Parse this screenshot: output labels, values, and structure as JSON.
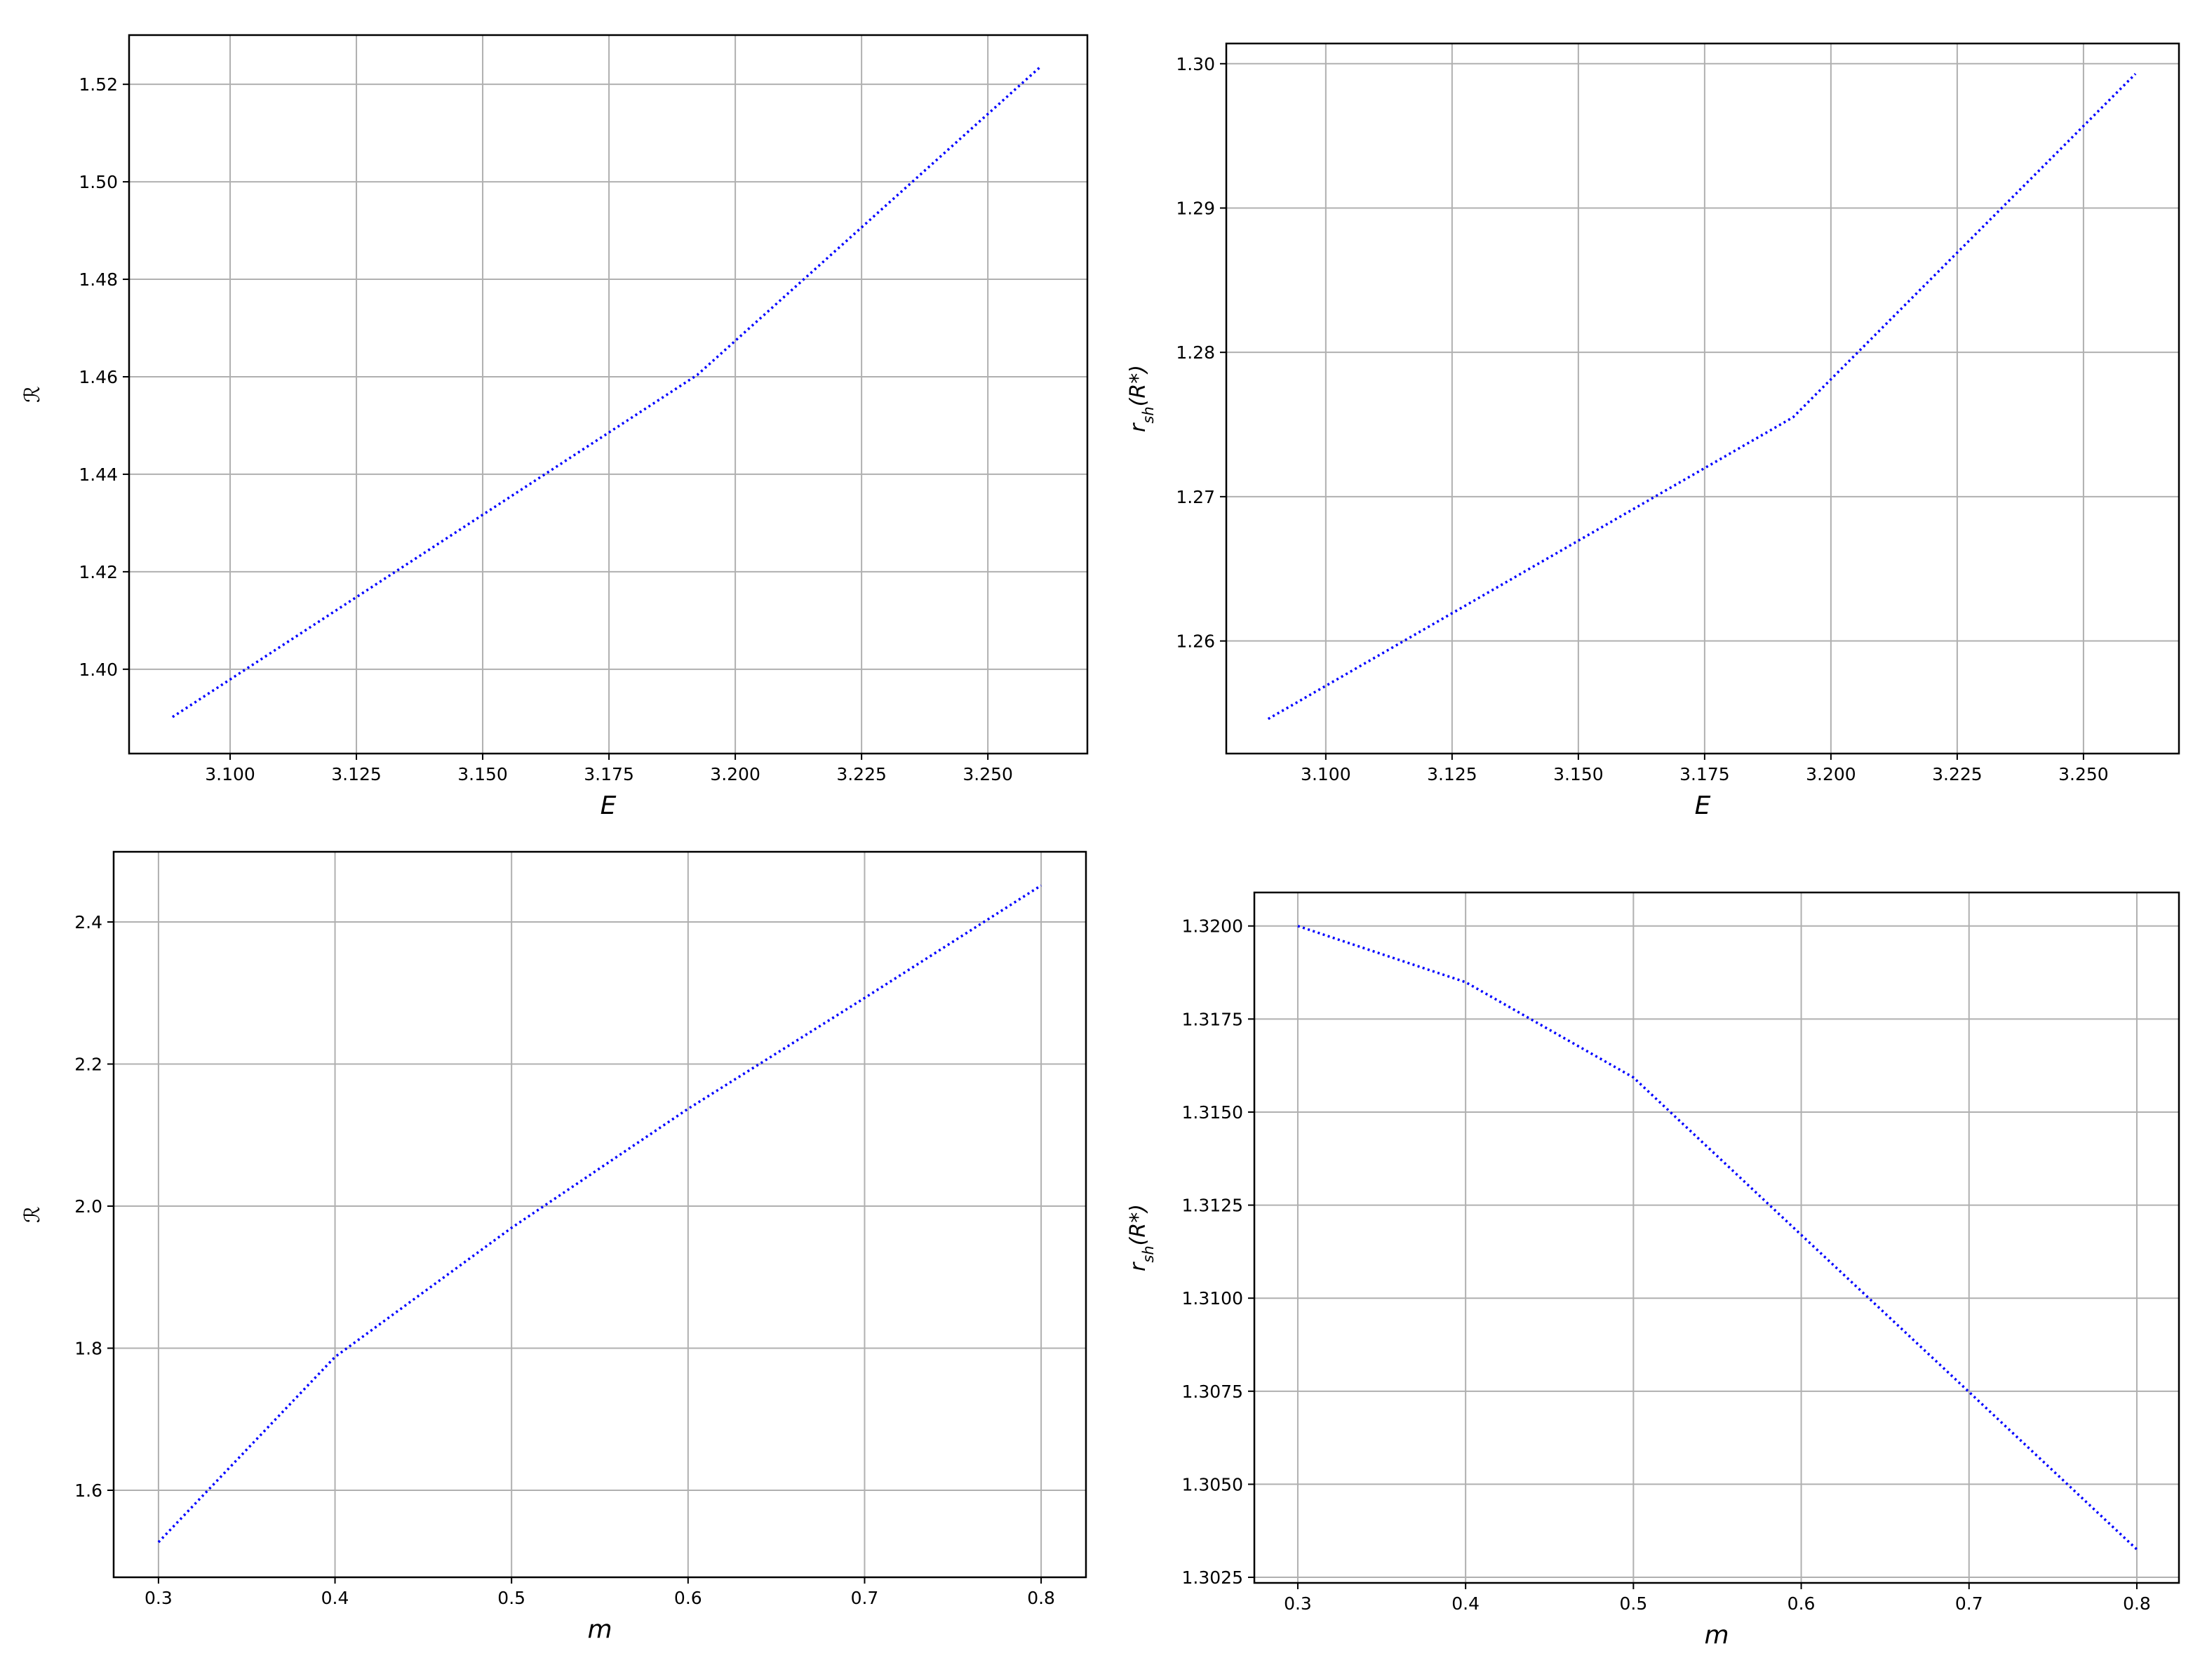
{
  "chart_data": [
    {
      "type": "line",
      "xlabel": "E",
      "ylabel": {
        "base": "ℛ"
      },
      "x": [
        3.0886,
        3.1925,
        3.2603
      ],
      "series": [
        {
          "color": "#0000ff",
          "values": [
            1.3902,
            1.4604,
            1.5235
          ]
        }
      ],
      "xlim": [
        3.08,
        3.2697
      ],
      "ylim": [
        1.3827,
        1.5301
      ],
      "xticks": [
        {
          "value": 3.1,
          "label": "3.100"
        },
        3.125,
        {
          "value": 3.15,
          "label": "3.150"
        },
        3.175,
        {
          "value": 3.2,
          "label": "3.200"
        },
        3.225,
        {
          "value": 3.25,
          "label": "3.250"
        }
      ],
      "yticks": [
        {
          "value": 1.4,
          "label": "1.40"
        },
        1.42,
        1.44,
        1.46,
        1.48,
        {
          "value": 1.5,
          "label": "1.50"
        },
        1.52
      ],
      "grid": true
    },
    {
      "type": "line",
      "xlabel": "E",
      "ylabel": {
        "base": "r",
        "sub": "sh",
        "tail": "(R*)"
      },
      "x": [
        3.0886,
        3.1925,
        3.2603
      ],
      "series": [
        {
          "color": "#0000ff",
          "values": [
            1.2546,
            1.2755,
            1.2993
          ]
        }
      ],
      "xlim": [
        3.0803,
        3.2689
      ],
      "ylim": [
        1.2522,
        1.3014
      ],
      "xticks": [
        {
          "value": 3.1,
          "label": "3.100"
        },
        3.125,
        {
          "value": 3.15,
          "label": "3.150"
        },
        3.175,
        {
          "value": 3.2,
          "label": "3.200"
        },
        3.225,
        {
          "value": 3.25,
          "label": "3.250"
        }
      ],
      "yticks": [
        1.26,
        1.27,
        1.28,
        1.29,
        {
          "value": 1.3,
          "label": "1.30"
        }
      ],
      "grid": true
    },
    {
      "type": "line",
      "xlabel": "m",
      "ylabel": {
        "base": "ℛ"
      },
      "x": [
        0.3,
        0.4,
        0.5,
        0.6,
        0.7,
        0.8
      ],
      "series": [
        {
          "color": "#0000ff",
          "values": [
            1.5269,
            1.7877,
            1.9694,
            2.137,
            2.293,
            2.4514
          ]
        }
      ],
      "xlim": [
        0.2746,
        0.8254
      ],
      "ylim": [
        1.4775,
        2.4988
      ],
      "xticks": [
        0.3,
        0.4,
        0.5,
        0.6,
        0.7,
        0.8
      ],
      "yticks": [
        1.6,
        1.8,
        {
          "value": 2.0,
          "label": "2.0"
        },
        2.2,
        2.4
      ],
      "grid": true
    },
    {
      "type": "line",
      "xlabel": "m",
      "ylabel": {
        "base": "r",
        "sub": "sh",
        "tail": "(R*)"
      },
      "x": [
        0.3,
        0.4,
        0.5,
        0.6,
        0.7,
        0.8
      ],
      "series": [
        {
          "color": "#0000ff",
          "values": [
            1.32,
            1.31849,
            1.31593,
            1.3117,
            1.30748,
            1.30325
          ]
        }
      ],
      "xlim": [
        0.2741,
        0.8251
      ],
      "ylim": [
        1.30235,
        1.3209
      ],
      "xticks": [
        0.3,
        0.4,
        0.5,
        0.6,
        0.7,
        0.8
      ],
      "yticks": [
        1.3025,
        {
          "value": 1.305,
          "label": "1.3050"
        },
        1.3075,
        {
          "value": 1.31,
          "label": "1.3100"
        },
        1.3125,
        {
          "value": 1.315,
          "label": "1.3150"
        },
        1.3175,
        {
          "value": 1.32,
          "label": "1.3200"
        }
      ],
      "grid": true
    }
  ]
}
